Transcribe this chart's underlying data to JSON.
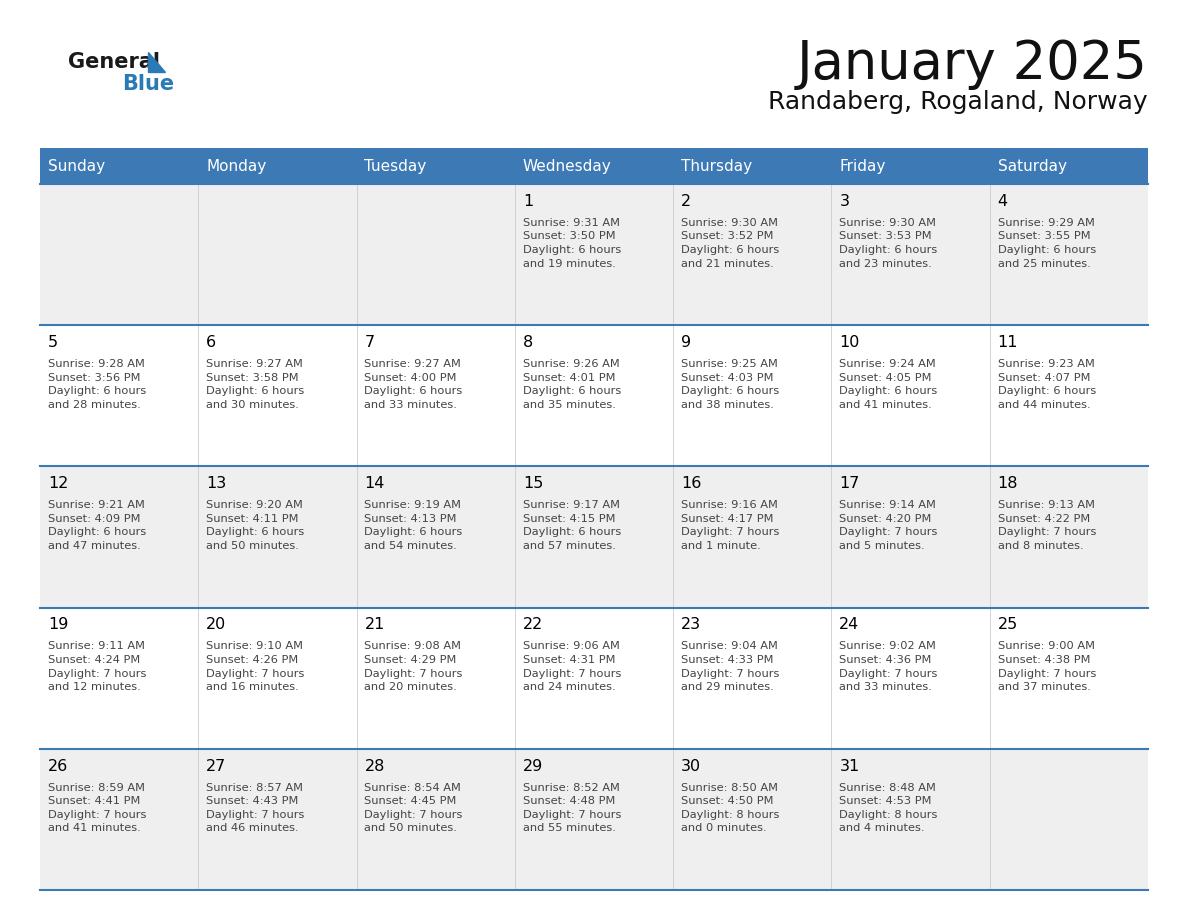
{
  "title": "January 2025",
  "subtitle": "Randaberg, Rogaland, Norway",
  "days_of_week": [
    "Sunday",
    "Monday",
    "Tuesday",
    "Wednesday",
    "Thursday",
    "Friday",
    "Saturday"
  ],
  "header_bg_color": "#3d7ab5",
  "header_text_color": "#ffffff",
  "cell_bg_white": "#ffffff",
  "cell_bg_gray": "#efefef",
  "cell_border_color": "#3d7ab5",
  "day_number_color": "#000000",
  "cell_text_color": "#444444",
  "title_color": "#111111",
  "subtitle_color": "#111111",
  "logo_general_color": "#1a1a1a",
  "logo_blue_color": "#2a7ab5",
  "calendar_data": [
    [
      {
        "day": null,
        "info": null
      },
      {
        "day": null,
        "info": null
      },
      {
        "day": null,
        "info": null
      },
      {
        "day": 1,
        "info": "Sunrise: 9:31 AM\nSunset: 3:50 PM\nDaylight: 6 hours\nand 19 minutes."
      },
      {
        "day": 2,
        "info": "Sunrise: 9:30 AM\nSunset: 3:52 PM\nDaylight: 6 hours\nand 21 minutes."
      },
      {
        "day": 3,
        "info": "Sunrise: 9:30 AM\nSunset: 3:53 PM\nDaylight: 6 hours\nand 23 minutes."
      },
      {
        "day": 4,
        "info": "Sunrise: 9:29 AM\nSunset: 3:55 PM\nDaylight: 6 hours\nand 25 minutes."
      }
    ],
    [
      {
        "day": 5,
        "info": "Sunrise: 9:28 AM\nSunset: 3:56 PM\nDaylight: 6 hours\nand 28 minutes."
      },
      {
        "day": 6,
        "info": "Sunrise: 9:27 AM\nSunset: 3:58 PM\nDaylight: 6 hours\nand 30 minutes."
      },
      {
        "day": 7,
        "info": "Sunrise: 9:27 AM\nSunset: 4:00 PM\nDaylight: 6 hours\nand 33 minutes."
      },
      {
        "day": 8,
        "info": "Sunrise: 9:26 AM\nSunset: 4:01 PM\nDaylight: 6 hours\nand 35 minutes."
      },
      {
        "day": 9,
        "info": "Sunrise: 9:25 AM\nSunset: 4:03 PM\nDaylight: 6 hours\nand 38 minutes."
      },
      {
        "day": 10,
        "info": "Sunrise: 9:24 AM\nSunset: 4:05 PM\nDaylight: 6 hours\nand 41 minutes."
      },
      {
        "day": 11,
        "info": "Sunrise: 9:23 AM\nSunset: 4:07 PM\nDaylight: 6 hours\nand 44 minutes."
      }
    ],
    [
      {
        "day": 12,
        "info": "Sunrise: 9:21 AM\nSunset: 4:09 PM\nDaylight: 6 hours\nand 47 minutes."
      },
      {
        "day": 13,
        "info": "Sunrise: 9:20 AM\nSunset: 4:11 PM\nDaylight: 6 hours\nand 50 minutes."
      },
      {
        "day": 14,
        "info": "Sunrise: 9:19 AM\nSunset: 4:13 PM\nDaylight: 6 hours\nand 54 minutes."
      },
      {
        "day": 15,
        "info": "Sunrise: 9:17 AM\nSunset: 4:15 PM\nDaylight: 6 hours\nand 57 minutes."
      },
      {
        "day": 16,
        "info": "Sunrise: 9:16 AM\nSunset: 4:17 PM\nDaylight: 7 hours\nand 1 minute."
      },
      {
        "day": 17,
        "info": "Sunrise: 9:14 AM\nSunset: 4:20 PM\nDaylight: 7 hours\nand 5 minutes."
      },
      {
        "day": 18,
        "info": "Sunrise: 9:13 AM\nSunset: 4:22 PM\nDaylight: 7 hours\nand 8 minutes."
      }
    ],
    [
      {
        "day": 19,
        "info": "Sunrise: 9:11 AM\nSunset: 4:24 PM\nDaylight: 7 hours\nand 12 minutes."
      },
      {
        "day": 20,
        "info": "Sunrise: 9:10 AM\nSunset: 4:26 PM\nDaylight: 7 hours\nand 16 minutes."
      },
      {
        "day": 21,
        "info": "Sunrise: 9:08 AM\nSunset: 4:29 PM\nDaylight: 7 hours\nand 20 minutes."
      },
      {
        "day": 22,
        "info": "Sunrise: 9:06 AM\nSunset: 4:31 PM\nDaylight: 7 hours\nand 24 minutes."
      },
      {
        "day": 23,
        "info": "Sunrise: 9:04 AM\nSunset: 4:33 PM\nDaylight: 7 hours\nand 29 minutes."
      },
      {
        "day": 24,
        "info": "Sunrise: 9:02 AM\nSunset: 4:36 PM\nDaylight: 7 hours\nand 33 minutes."
      },
      {
        "day": 25,
        "info": "Sunrise: 9:00 AM\nSunset: 4:38 PM\nDaylight: 7 hours\nand 37 minutes."
      }
    ],
    [
      {
        "day": 26,
        "info": "Sunrise: 8:59 AM\nSunset: 4:41 PM\nDaylight: 7 hours\nand 41 minutes."
      },
      {
        "day": 27,
        "info": "Sunrise: 8:57 AM\nSunset: 4:43 PM\nDaylight: 7 hours\nand 46 minutes."
      },
      {
        "day": 28,
        "info": "Sunrise: 8:54 AM\nSunset: 4:45 PM\nDaylight: 7 hours\nand 50 minutes."
      },
      {
        "day": 29,
        "info": "Sunrise: 8:52 AM\nSunset: 4:48 PM\nDaylight: 7 hours\nand 55 minutes."
      },
      {
        "day": 30,
        "info": "Sunrise: 8:50 AM\nSunset: 4:50 PM\nDaylight: 8 hours\nand 0 minutes."
      },
      {
        "day": 31,
        "info": "Sunrise: 8:48 AM\nSunset: 4:53 PM\nDaylight: 8 hours\nand 4 minutes."
      },
      {
        "day": null,
        "info": null
      }
    ]
  ]
}
